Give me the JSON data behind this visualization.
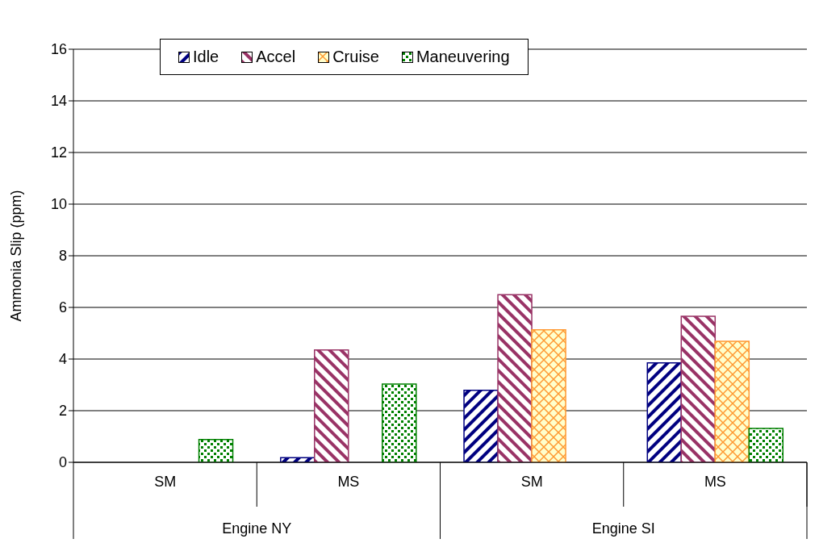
{
  "chart_data": {
    "type": "bar",
    "ylabel": "Ammonia Slip (ppm)",
    "categories": [
      "SM",
      "MS",
      "SM",
      "MS"
    ],
    "annotations": [
      "Engine NY",
      "Engine SI"
    ],
    "series": [
      {
        "name": "Idle",
        "color": "#000080",
        "values": [
          null,
          0.18,
          2.79,
          3.85
        ]
      },
      {
        "name": "Accel",
        "color": "#993366",
        "values": [
          null,
          4.35,
          6.49,
          5.66
        ]
      },
      {
        "name": "Cruise",
        "color": "#ff9933",
        "values": [
          null,
          null,
          5.13,
          4.69
        ]
      },
      {
        "name": "Maneuvering",
        "color": "#008000",
        "values": [
          0.88,
          3.03,
          null,
          1.31
        ]
      }
    ],
    "ylim": [
      0,
      16
    ],
    "yticks": [
      0,
      2,
      4,
      6,
      8,
      10,
      12,
      14,
      16
    ],
    "grid": "y",
    "legend": "top"
  }
}
